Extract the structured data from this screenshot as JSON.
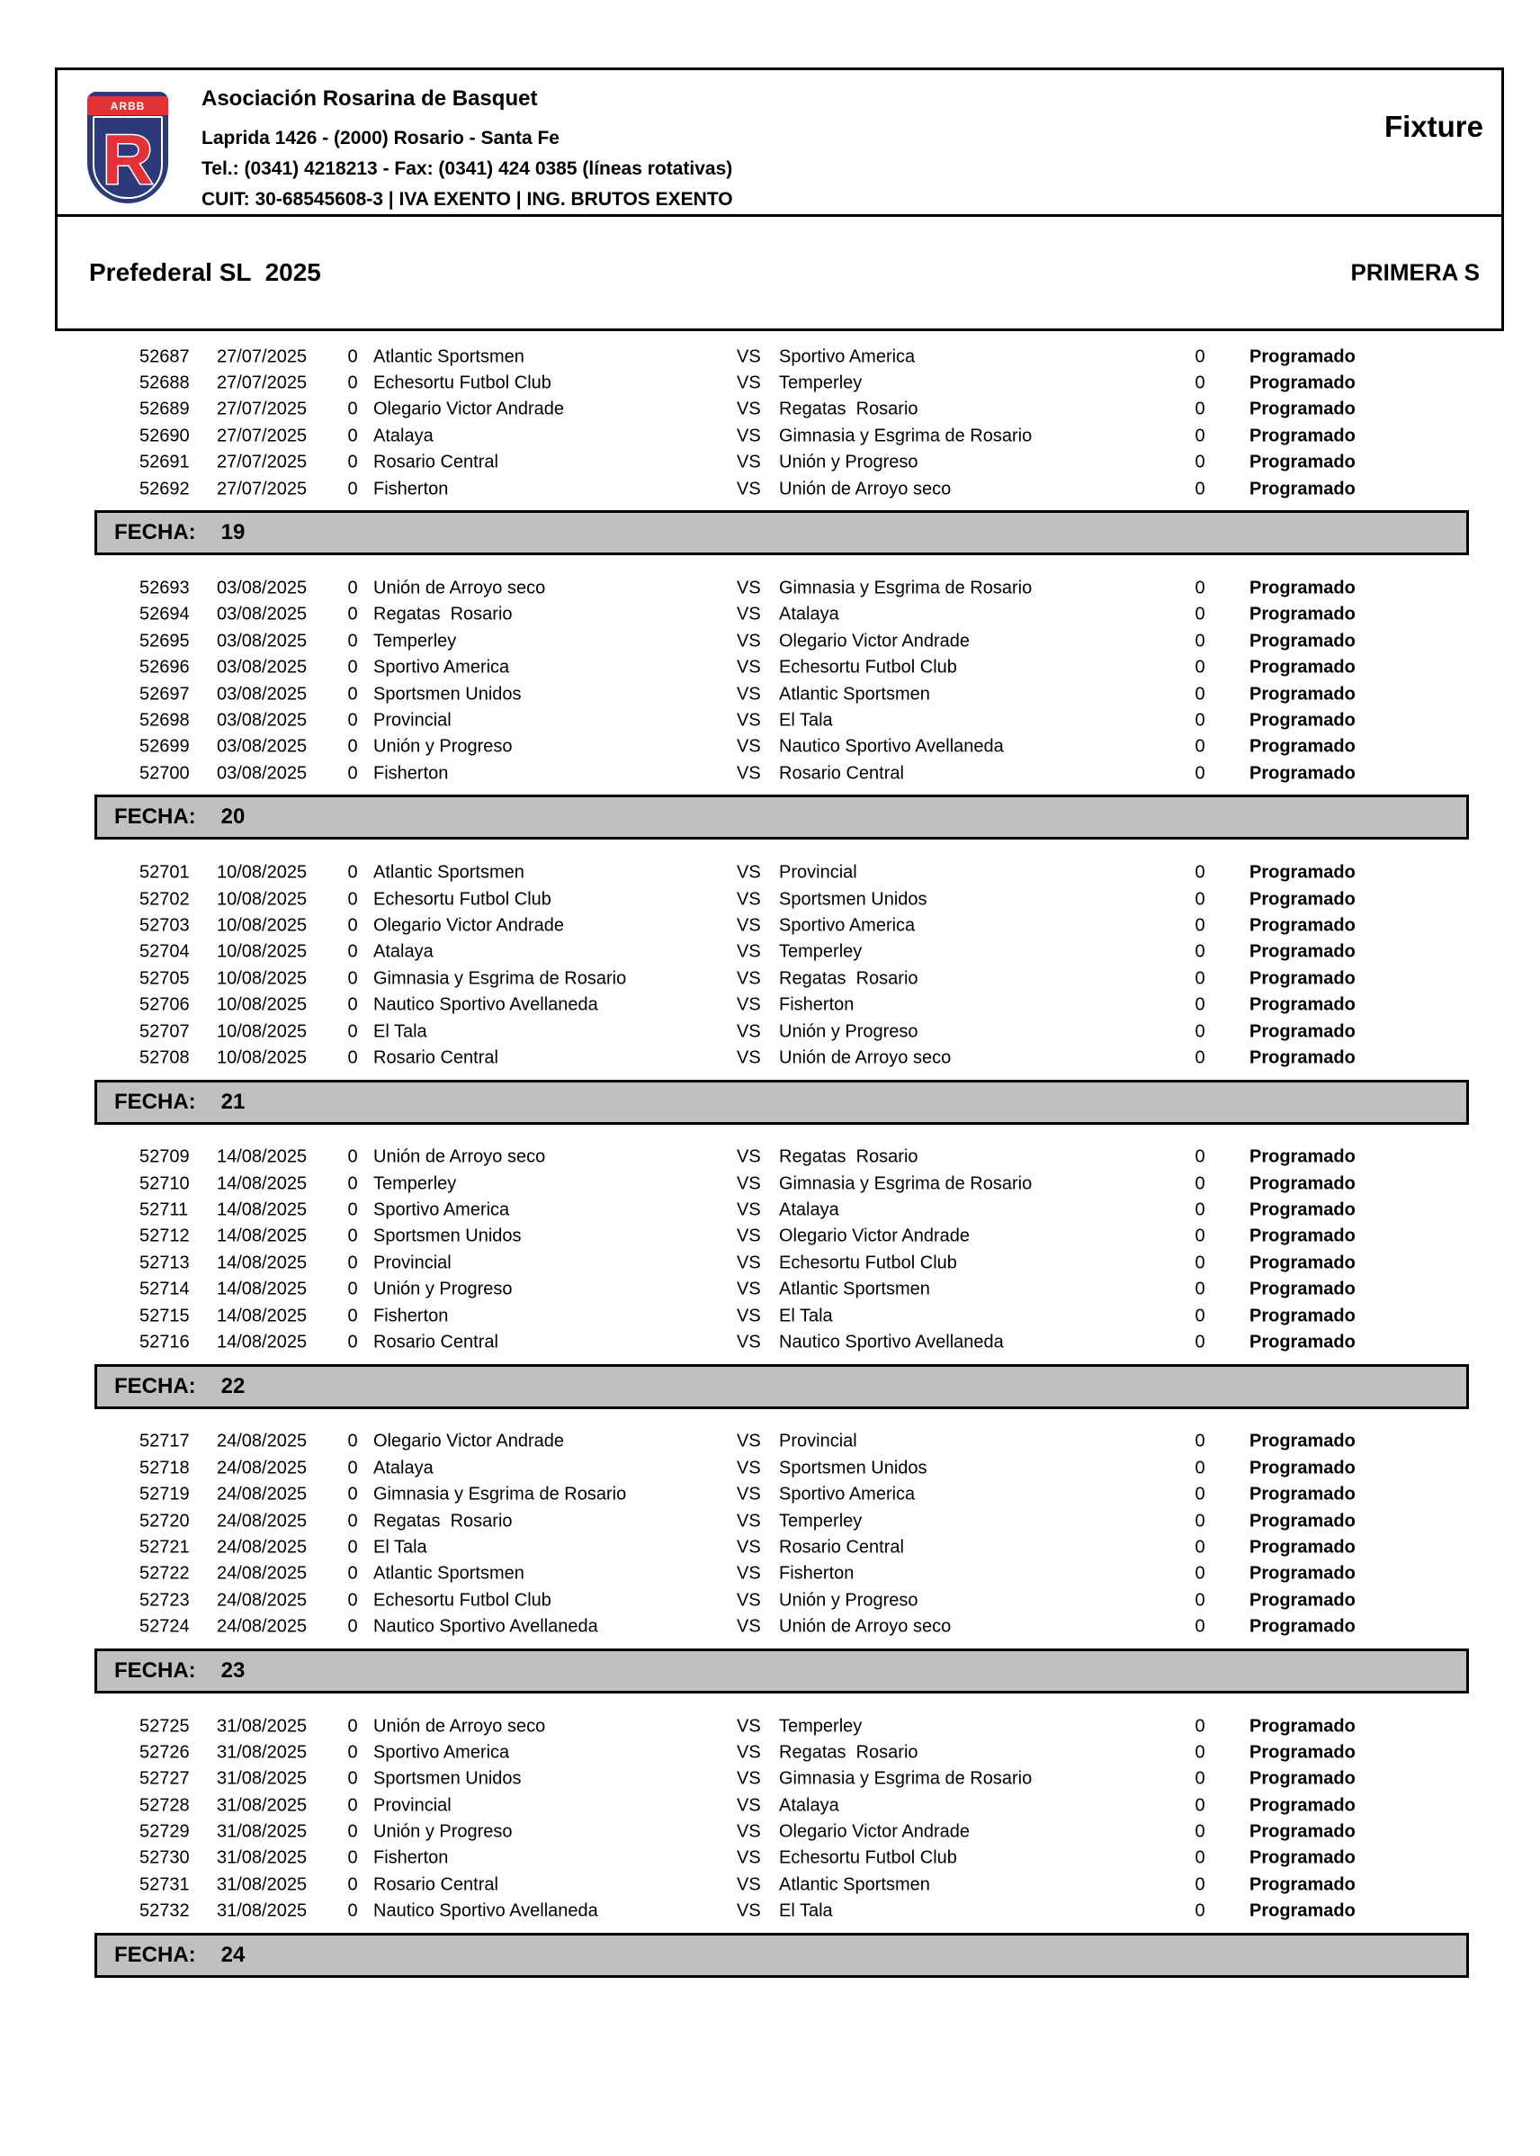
{
  "header": {
    "org_name": "Asociación Rosarina de Basquet",
    "address": "Laprida 1426 - (2000) Rosario - Santa Fe",
    "phone": "Tel.: (0341) 4218213 - Fax: (0341) 424 0385 (líneas rotativas)",
    "tax_line": "CUIT: 30-68545608-3 | IVA EXENTO | ING. BRUTOS EXENTO",
    "doc_type": "Fixture",
    "logo": {
      "band_text": "ARBB",
      "letter": "R"
    }
  },
  "title": {
    "competition": "Prefederal SL  2025",
    "category": "PRIMERA S"
  },
  "labels": {
    "fecha": "FECHA:",
    "vs": "VS"
  },
  "colors": {
    "bar_gray": "#c0c0c0",
    "logo_navy": "#2c3a7a",
    "logo_red": "#e23137",
    "border_black": "#000000"
  },
  "sections": [
    {
      "fecha": "",
      "rows": [
        {
          "id": "52687",
          "date": "27/07/2025",
          "home_score": "0",
          "home": "Atlantic Sportsmen",
          "away": "Sportivo America",
          "away_score": "0",
          "status": "Programado"
        },
        {
          "id": "52688",
          "date": "27/07/2025",
          "home_score": "0",
          "home": "Echesortu Futbol Club",
          "away": "Temperley",
          "away_score": "0",
          "status": "Programado"
        },
        {
          "id": "52689",
          "date": "27/07/2025",
          "home_score": "0",
          "home": "Olegario Victor Andrade",
          "away": "Regatas  Rosario",
          "away_score": "0",
          "status": "Programado"
        },
        {
          "id": "52690",
          "date": "27/07/2025",
          "home_score": "0",
          "home": "Atalaya",
          "away": "Gimnasia y Esgrima de Rosario",
          "away_score": "0",
          "status": "Programado"
        },
        {
          "id": "52691",
          "date": "27/07/2025",
          "home_score": "0",
          "home": "Rosario Central",
          "away": "Unión y Progreso",
          "away_score": "0",
          "status": "Programado"
        },
        {
          "id": "52692",
          "date": "27/07/2025",
          "home_score": "0",
          "home": "Fisherton",
          "away": "Unión de Arroyo seco",
          "away_score": "0",
          "status": "Programado"
        }
      ]
    },
    {
      "fecha": "19",
      "rows": [
        {
          "id": "52693",
          "date": "03/08/2025",
          "home_score": "0",
          "home": "Unión de Arroyo seco",
          "away": "Gimnasia y Esgrima de Rosario",
          "away_score": "0",
          "status": "Programado"
        },
        {
          "id": "52694",
          "date": "03/08/2025",
          "home_score": "0",
          "home": "Regatas  Rosario",
          "away": "Atalaya",
          "away_score": "0",
          "status": "Programado"
        },
        {
          "id": "52695",
          "date": "03/08/2025",
          "home_score": "0",
          "home": "Temperley",
          "away": "Olegario Victor Andrade",
          "away_score": "0",
          "status": "Programado"
        },
        {
          "id": "52696",
          "date": "03/08/2025",
          "home_score": "0",
          "home": "Sportivo America",
          "away": "Echesortu Futbol Club",
          "away_score": "0",
          "status": "Programado"
        },
        {
          "id": "52697",
          "date": "03/08/2025",
          "home_score": "0",
          "home": "Sportsmen Unidos",
          "away": "Atlantic Sportsmen",
          "away_score": "0",
          "status": "Programado"
        },
        {
          "id": "52698",
          "date": "03/08/2025",
          "home_score": "0",
          "home": "Provincial",
          "away": "El Tala",
          "away_score": "0",
          "status": "Programado"
        },
        {
          "id": "52699",
          "date": "03/08/2025",
          "home_score": "0",
          "home": "Unión y Progreso",
          "away": "Nautico Sportivo Avellaneda",
          "away_score": "0",
          "status": "Programado"
        },
        {
          "id": "52700",
          "date": "03/08/2025",
          "home_score": "0",
          "home": "Fisherton",
          "away": "Rosario Central",
          "away_score": "0",
          "status": "Programado"
        }
      ]
    },
    {
      "fecha": "20",
      "rows": [
        {
          "id": "52701",
          "date": "10/08/2025",
          "home_score": "0",
          "home": "Atlantic Sportsmen",
          "away": "Provincial",
          "away_score": "0",
          "status": "Programado"
        },
        {
          "id": "52702",
          "date": "10/08/2025",
          "home_score": "0",
          "home": "Echesortu Futbol Club",
          "away": "Sportsmen Unidos",
          "away_score": "0",
          "status": "Programado"
        },
        {
          "id": "52703",
          "date": "10/08/2025",
          "home_score": "0",
          "home": "Olegario Victor Andrade",
          "away": "Sportivo America",
          "away_score": "0",
          "status": "Programado"
        },
        {
          "id": "52704",
          "date": "10/08/2025",
          "home_score": "0",
          "home": "Atalaya",
          "away": "Temperley",
          "away_score": "0",
          "status": "Programado"
        },
        {
          "id": "52705",
          "date": "10/08/2025",
          "home_score": "0",
          "home": "Gimnasia y Esgrima de Rosario",
          "away": "Regatas  Rosario",
          "away_score": "0",
          "status": "Programado"
        },
        {
          "id": "52706",
          "date": "10/08/2025",
          "home_score": "0",
          "home": "Nautico Sportivo Avellaneda",
          "away": "Fisherton",
          "away_score": "0",
          "status": "Programado"
        },
        {
          "id": "52707",
          "date": "10/08/2025",
          "home_score": "0",
          "home": "El Tala",
          "away": "Unión y Progreso",
          "away_score": "0",
          "status": "Programado"
        },
        {
          "id": "52708",
          "date": "10/08/2025",
          "home_score": "0",
          "home": "Rosario Central",
          "away": "Unión de Arroyo seco",
          "away_score": "0",
          "status": "Programado"
        }
      ]
    },
    {
      "fecha": "21",
      "rows": [
        {
          "id": "52709",
          "date": "14/08/2025",
          "home_score": "0",
          "home": "Unión de Arroyo seco",
          "away": "Regatas  Rosario",
          "away_score": "0",
          "status": "Programado"
        },
        {
          "id": "52710",
          "date": "14/08/2025",
          "home_score": "0",
          "home": "Temperley",
          "away": "Gimnasia y Esgrima de Rosario",
          "away_score": "0",
          "status": "Programado"
        },
        {
          "id": "52711",
          "date": "14/08/2025",
          "home_score": "0",
          "home": "Sportivo America",
          "away": "Atalaya",
          "away_score": "0",
          "status": "Programado"
        },
        {
          "id": "52712",
          "date": "14/08/2025",
          "home_score": "0",
          "home": "Sportsmen Unidos",
          "away": "Olegario Victor Andrade",
          "away_score": "0",
          "status": "Programado"
        },
        {
          "id": "52713",
          "date": "14/08/2025",
          "home_score": "0",
          "home": "Provincial",
          "away": "Echesortu Futbol Club",
          "away_score": "0",
          "status": "Programado"
        },
        {
          "id": "52714",
          "date": "14/08/2025",
          "home_score": "0",
          "home": "Unión y Progreso",
          "away": "Atlantic Sportsmen",
          "away_score": "0",
          "status": "Programado"
        },
        {
          "id": "52715",
          "date": "14/08/2025",
          "home_score": "0",
          "home": "Fisherton",
          "away": "El Tala",
          "away_score": "0",
          "status": "Programado"
        },
        {
          "id": "52716",
          "date": "14/08/2025",
          "home_score": "0",
          "home": "Rosario Central",
          "away": "Nautico Sportivo Avellaneda",
          "away_score": "0",
          "status": "Programado"
        }
      ]
    },
    {
      "fecha": "22",
      "rows": [
        {
          "id": "52717",
          "date": "24/08/2025",
          "home_score": "0",
          "home": "Olegario Victor Andrade",
          "away": "Provincial",
          "away_score": "0",
          "status": "Programado"
        },
        {
          "id": "52718",
          "date": "24/08/2025",
          "home_score": "0",
          "home": "Atalaya",
          "away": "Sportsmen Unidos",
          "away_score": "0",
          "status": "Programado"
        },
        {
          "id": "52719",
          "date": "24/08/2025",
          "home_score": "0",
          "home": "Gimnasia y Esgrima de Rosario",
          "away": "Sportivo America",
          "away_score": "0",
          "status": "Programado"
        },
        {
          "id": "52720",
          "date": "24/08/2025",
          "home_score": "0",
          "home": "Regatas  Rosario",
          "away": "Temperley",
          "away_score": "0",
          "status": "Programado"
        },
        {
          "id": "52721",
          "date": "24/08/2025",
          "home_score": "0",
          "home": "El Tala",
          "away": "Rosario Central",
          "away_score": "0",
          "status": "Programado"
        },
        {
          "id": "52722",
          "date": "24/08/2025",
          "home_score": "0",
          "home": "Atlantic Sportsmen",
          "away": "Fisherton",
          "away_score": "0",
          "status": "Programado"
        },
        {
          "id": "52723",
          "date": "24/08/2025",
          "home_score": "0",
          "home": "Echesortu Futbol Club",
          "away": "Unión y Progreso",
          "away_score": "0",
          "status": "Programado"
        },
        {
          "id": "52724",
          "date": "24/08/2025",
          "home_score": "0",
          "home": "Nautico Sportivo Avellaneda",
          "away": "Unión de Arroyo seco",
          "away_score": "0",
          "status": "Programado"
        }
      ]
    },
    {
      "fecha": "23",
      "rows": [
        {
          "id": "52725",
          "date": "31/08/2025",
          "home_score": "0",
          "home": "Unión de Arroyo seco",
          "away": "Temperley",
          "away_score": "0",
          "status": "Programado"
        },
        {
          "id": "52726",
          "date": "31/08/2025",
          "home_score": "0",
          "home": "Sportivo America",
          "away": "Regatas  Rosario",
          "away_score": "0",
          "status": "Programado"
        },
        {
          "id": "52727",
          "date": "31/08/2025",
          "home_score": "0",
          "home": "Sportsmen Unidos",
          "away": "Gimnasia y Esgrima de Rosario",
          "away_score": "0",
          "status": "Programado"
        },
        {
          "id": "52728",
          "date": "31/08/2025",
          "home_score": "0",
          "home": "Provincial",
          "away": "Atalaya",
          "away_score": "0",
          "status": "Programado"
        },
        {
          "id": "52729",
          "date": "31/08/2025",
          "home_score": "0",
          "home": "Unión y Progreso",
          "away": "Olegario Victor Andrade",
          "away_score": "0",
          "status": "Programado"
        },
        {
          "id": "52730",
          "date": "31/08/2025",
          "home_score": "0",
          "home": "Fisherton",
          "away": "Echesortu Futbol Club",
          "away_score": "0",
          "status": "Programado"
        },
        {
          "id": "52731",
          "date": "31/08/2025",
          "home_score": "0",
          "home": "Rosario Central",
          "away": "Atlantic Sportsmen",
          "away_score": "0",
          "status": "Programado"
        },
        {
          "id": "52732",
          "date": "31/08/2025",
          "home_score": "0",
          "home": "Nautico Sportivo Avellaneda",
          "away": "El Tala",
          "away_score": "0",
          "status": "Programado"
        }
      ]
    },
    {
      "fecha": "24",
      "rows": []
    }
  ]
}
